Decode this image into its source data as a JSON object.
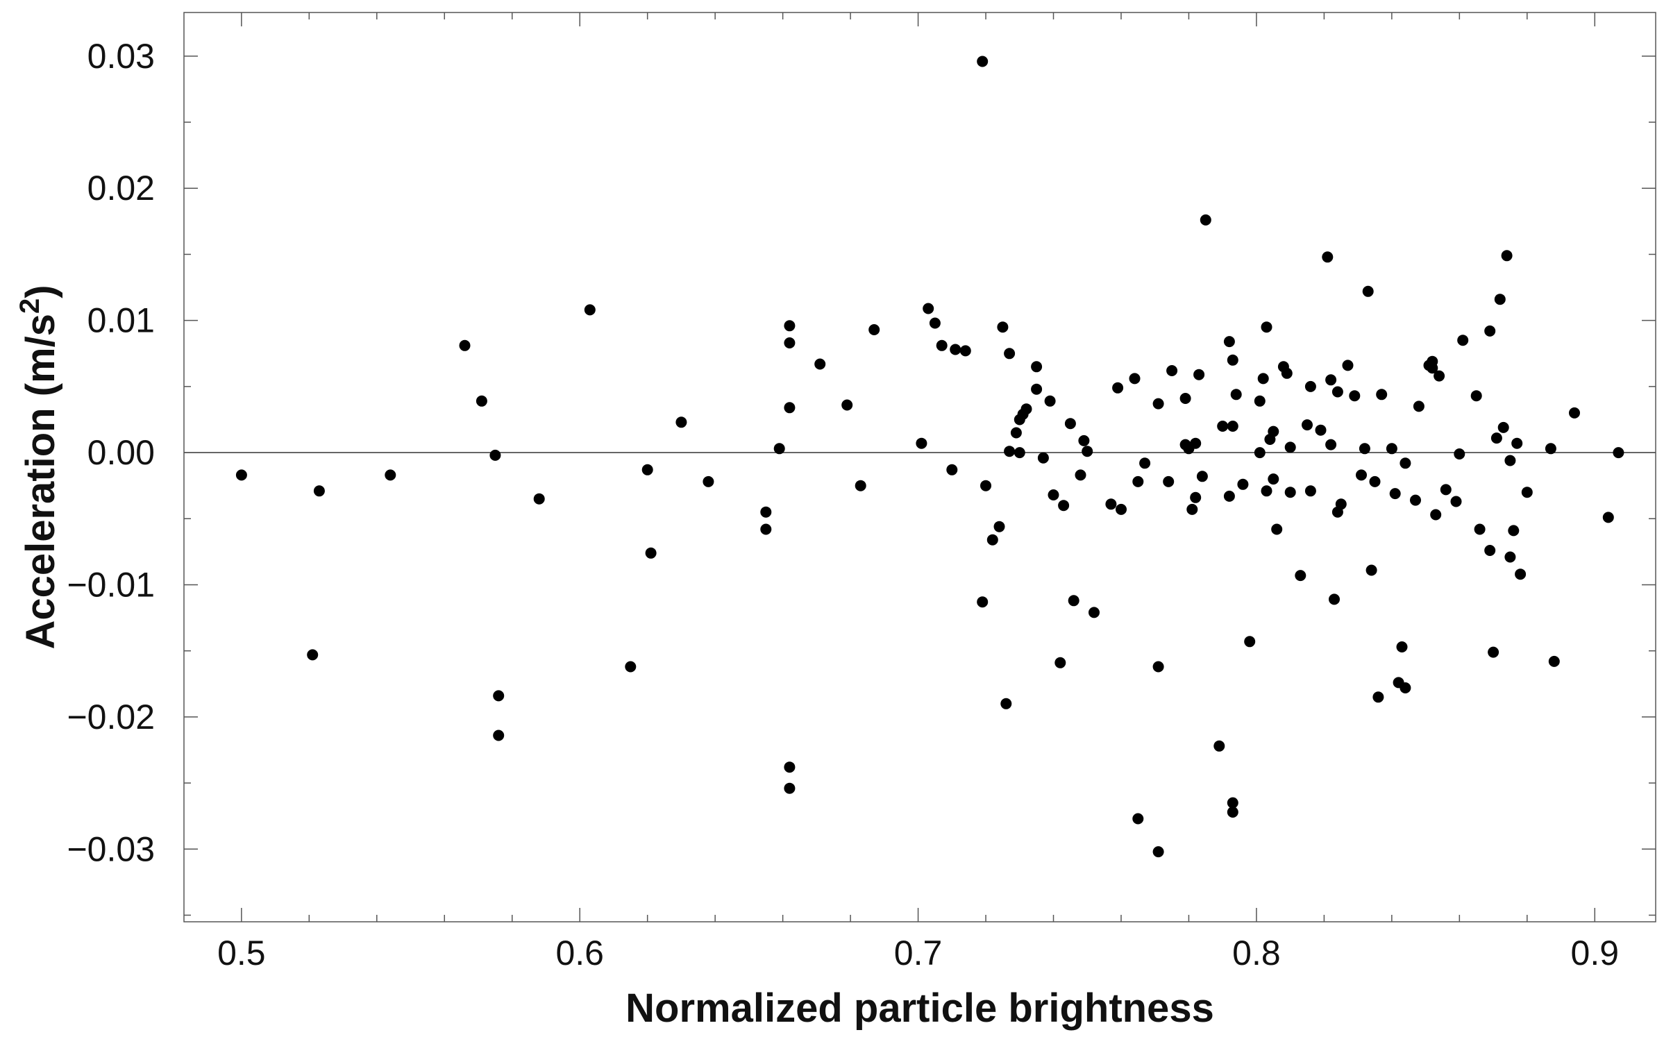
{
  "chart_data": {
    "type": "scatter",
    "xlabel": "Normalized particle brightness",
    "ylabel": "Acceleration (m/s",
    "ylabel_superscript": "2",
    "ylabel_suffix": ")",
    "xlim": [
      0.483,
      0.918
    ],
    "ylim": [
      -0.0355,
      0.0333
    ],
    "xticks": [
      "0.5",
      "0.6",
      "0.7",
      "0.8",
      "0.9"
    ],
    "yticks": [
      "−0.03",
      "−0.02",
      "−0.01",
      "0.00",
      "0.01",
      "0.02",
      "0.03"
    ],
    "zero_line": true,
    "grid": false,
    "marker_color": "#000000",
    "points": [
      [
        0.5,
        -0.0017
      ],
      [
        0.521,
        -0.0153
      ],
      [
        0.523,
        -0.0029
      ],
      [
        0.544,
        -0.0017
      ],
      [
        0.566,
        0.0081
      ],
      [
        0.571,
        0.0039
      ],
      [
        0.575,
        -0.0002
      ],
      [
        0.576,
        -0.0184
      ],
      [
        0.576,
        -0.0214
      ],
      [
        0.588,
        -0.0035
      ],
      [
        0.603,
        0.0108
      ],
      [
        0.615,
        -0.0162
      ],
      [
        0.62,
        -0.0013
      ],
      [
        0.621,
        -0.0076
      ],
      [
        0.63,
        0.0023
      ],
      [
        0.638,
        -0.0022
      ],
      [
        0.655,
        -0.0045
      ],
      [
        0.655,
        -0.0058
      ],
      [
        0.659,
        0.0003
      ],
      [
        0.662,
        0.0096
      ],
      [
        0.662,
        0.0083
      ],
      [
        0.662,
        0.0034
      ],
      [
        0.662,
        -0.0238
      ],
      [
        0.662,
        -0.0254
      ],
      [
        0.671,
        0.0067
      ],
      [
        0.679,
        0.0036
      ],
      [
        0.683,
        -0.0025
      ],
      [
        0.687,
        0.0093
      ],
      [
        0.701,
        0.0007
      ],
      [
        0.703,
        0.0109
      ],
      [
        0.705,
        0.0098
      ],
      [
        0.707,
        0.0081
      ],
      [
        0.71,
        -0.0013
      ],
      [
        0.711,
        0.0078
      ],
      [
        0.714,
        0.0077
      ],
      [
        0.719,
        0.0296
      ],
      [
        0.719,
        -0.0113
      ],
      [
        0.72,
        -0.0025
      ],
      [
        0.722,
        -0.0066
      ],
      [
        0.724,
        -0.0056
      ],
      [
        0.725,
        0.0095
      ],
      [
        0.726,
        -0.019
      ],
      [
        0.727,
        0.0001
      ],
      [
        0.727,
        0.0075
      ],
      [
        0.729,
        0.0015
      ],
      [
        0.73,
        0.0025
      ],
      [
        0.73,
        0.0
      ],
      [
        0.731,
        0.0029
      ],
      [
        0.732,
        0.0033
      ],
      [
        0.735,
        0.0065
      ],
      [
        0.735,
        0.0048
      ],
      [
        0.737,
        -0.0004
      ],
      [
        0.739,
        0.0039
      ],
      [
        0.74,
        -0.0032
      ],
      [
        0.742,
        -0.0159
      ],
      [
        0.743,
        -0.004
      ],
      [
        0.745,
        0.0022
      ],
      [
        0.746,
        -0.0112
      ],
      [
        0.748,
        -0.0017
      ],
      [
        0.749,
        0.0009
      ],
      [
        0.75,
        0.0001
      ],
      [
        0.752,
        -0.0121
      ],
      [
        0.757,
        -0.0039
      ],
      [
        0.759,
        0.0049
      ],
      [
        0.76,
        -0.0043
      ],
      [
        0.764,
        0.0056
      ],
      [
        0.765,
        -0.0022
      ],
      [
        0.765,
        -0.0277
      ],
      [
        0.767,
        -0.0008
      ],
      [
        0.771,
        0.0037
      ],
      [
        0.771,
        -0.0162
      ],
      [
        0.771,
        -0.0302
      ],
      [
        0.774,
        -0.0022
      ],
      [
        0.775,
        0.0062
      ],
      [
        0.779,
        0.0041
      ],
      [
        0.779,
        0.0006
      ],
      [
        0.78,
        0.0003
      ],
      [
        0.781,
        -0.0043
      ],
      [
        0.782,
        -0.0034
      ],
      [
        0.782,
        0.0007
      ],
      [
        0.783,
        0.0059
      ],
      [
        0.784,
        -0.0018
      ],
      [
        0.785,
        0.0176
      ],
      [
        0.789,
        -0.0222
      ],
      [
        0.79,
        0.002
      ],
      [
        0.792,
        0.0084
      ],
      [
        0.792,
        -0.0033
      ],
      [
        0.793,
        0.002
      ],
      [
        0.793,
        0.007
      ],
      [
        0.793,
        -0.0265
      ],
      [
        0.793,
        -0.0272
      ],
      [
        0.794,
        0.0044
      ],
      [
        0.796,
        -0.0024
      ],
      [
        0.798,
        -0.0143
      ],
      [
        0.801,
        0.0039
      ],
      [
        0.801,
        0.0
      ],
      [
        0.802,
        0.0056
      ],
      [
        0.803,
        0.0095
      ],
      [
        0.803,
        -0.0029
      ],
      [
        0.804,
        0.001
      ],
      [
        0.805,
        -0.002
      ],
      [
        0.805,
        0.0016
      ],
      [
        0.806,
        -0.0058
      ],
      [
        0.808,
        0.0065
      ],
      [
        0.809,
        0.006
      ],
      [
        0.81,
        0.0004
      ],
      [
        0.81,
        -0.003
      ],
      [
        0.813,
        -0.0093
      ],
      [
        0.815,
        0.0021
      ],
      [
        0.816,
        -0.0029
      ],
      [
        0.816,
        0.005
      ],
      [
        0.819,
        0.0017
      ],
      [
        0.821,
        0.0148
      ],
      [
        0.822,
        0.0006
      ],
      [
        0.822,
        0.0055
      ],
      [
        0.823,
        -0.0111
      ],
      [
        0.824,
        0.0046
      ],
      [
        0.824,
        -0.0045
      ],
      [
        0.825,
        -0.0039
      ],
      [
        0.827,
        0.0066
      ],
      [
        0.829,
        0.0043
      ],
      [
        0.831,
        -0.0017
      ],
      [
        0.832,
        0.0003
      ],
      [
        0.833,
        0.0122
      ],
      [
        0.834,
        -0.0089
      ],
      [
        0.835,
        -0.0022
      ],
      [
        0.836,
        -0.0185
      ],
      [
        0.837,
        0.0044
      ],
      [
        0.84,
        0.0003
      ],
      [
        0.841,
        -0.0031
      ],
      [
        0.842,
        -0.0174
      ],
      [
        0.843,
        -0.0147
      ],
      [
        0.844,
        -0.0178
      ],
      [
        0.844,
        -0.0008
      ],
      [
        0.847,
        -0.0036
      ],
      [
        0.848,
        0.0035
      ],
      [
        0.851,
        0.0066
      ],
      [
        0.852,
        0.0064
      ],
      [
        0.852,
        0.0069
      ],
      [
        0.853,
        -0.0047
      ],
      [
        0.854,
        0.0058
      ],
      [
        0.856,
        -0.0028
      ],
      [
        0.859,
        -0.0037
      ],
      [
        0.86,
        -0.0001
      ],
      [
        0.861,
        0.0085
      ],
      [
        0.865,
        0.0043
      ],
      [
        0.866,
        -0.0058
      ],
      [
        0.869,
        0.0092
      ],
      [
        0.869,
        -0.0074
      ],
      [
        0.87,
        -0.0151
      ],
      [
        0.871,
        0.0011
      ],
      [
        0.872,
        0.0116
      ],
      [
        0.873,
        0.0019
      ],
      [
        0.874,
        0.0149
      ],
      [
        0.875,
        -0.0006
      ],
      [
        0.875,
        -0.0079
      ],
      [
        0.876,
        -0.0059
      ],
      [
        0.877,
        0.0007
      ],
      [
        0.878,
        -0.0092
      ],
      [
        0.88,
        -0.003
      ],
      [
        0.887,
        0.0003
      ],
      [
        0.888,
        -0.0158
      ],
      [
        0.894,
        0.003
      ],
      [
        0.904,
        -0.0049
      ],
      [
        0.907,
        0.0
      ]
    ]
  }
}
